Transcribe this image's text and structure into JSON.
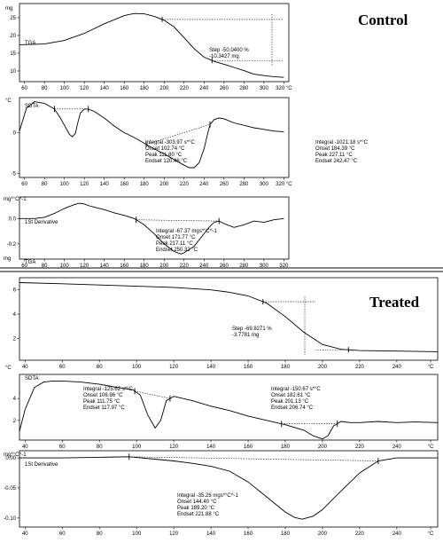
{
  "chart_data": [
    {
      "type": "line",
      "group": "Control",
      "title": "Control",
      "subtitle": "TGA",
      "unit": "mg",
      "xlim": [
        55,
        325
      ],
      "ylim": [
        7,
        29
      ],
      "x_ticks": [
        "60",
        "80",
        "100",
        "120",
        "140",
        "160",
        "180",
        "200",
        "220",
        "240",
        "260",
        "280",
        "300",
        "320 °C"
      ],
      "y_ticks": [
        [
          10,
          "10"
        ],
        [
          15,
          "15"
        ],
        [
          20,
          "20"
        ],
        [
          25,
          "25"
        ]
      ],
      "series": [
        {
          "x": [
            55,
            80,
            100,
            120,
            140,
            160,
            170,
            180,
            190,
            200,
            210,
            220,
            230,
            240,
            250,
            260,
            270,
            280,
            290,
            300,
            310,
            320
          ],
          "y": [
            17.4,
            17.6,
            18.6,
            20.6,
            23.3,
            25.6,
            26.2,
            26.1,
            25.4,
            24.3,
            22.4,
            19.4,
            16.3,
            13.9,
            12.7,
            11.9,
            11.0,
            10.1,
            9.1,
            8.7,
            8.4,
            8.2
          ]
        }
      ],
      "step_annotation": [
        "Step   -50.0400 %",
        "           -10.3427 mg"
      ],
      "step_range": [
        198,
        248
      ]
    },
    {
      "type": "line",
      "group": "Control",
      "subtitle": "SDTA",
      "unit": "°C",
      "xlim": [
        55,
        325
      ],
      "ylim": [
        -5.5,
        4.3
      ],
      "x_ticks": [
        "60",
        "80",
        "100",
        "120",
        "140",
        "160",
        "180",
        "200",
        "220",
        "240",
        "260",
        "280",
        "300",
        "320 °C"
      ],
      "y_ticks": [
        [
          -5,
          "-5"
        ],
        [
          0,
          "0"
        ]
      ],
      "series": [
        {
          "x": [
            55,
            62,
            70,
            80,
            90,
            95,
            100,
            105,
            108,
            111,
            113,
            116,
            120,
            124,
            130,
            140,
            150,
            160,
            170,
            180,
            190,
            200,
            210,
            220,
            225,
            230,
            235,
            240,
            243,
            246,
            250,
            255,
            260,
            270,
            280,
            290,
            300,
            310,
            320
          ],
          "y": [
            0.2,
            3.0,
            3.8,
            3.6,
            2.9,
            2.0,
            0.9,
            -0.2,
            -0.5,
            -0.1,
            1.0,
            2.4,
            2.9,
            2.9,
            2.6,
            1.8,
            0.8,
            0.0,
            -0.6,
            -1.3,
            -2.0,
            -2.6,
            -3.3,
            -4.0,
            -4.3,
            -4.3,
            -3.7,
            -2.0,
            -0.4,
            1.0,
            1.6,
            1.8,
            1.7,
            1.2,
            0.9,
            0.6,
            0.4,
            0.2,
            0.1
          ]
        }
      ],
      "baselines": [
        [
          90,
          124
        ],
        [
          182,
          246
        ]
      ],
      "annotations": [
        [
          "Integral   -303.97 s*°C",
          "Onset     102.74 °C",
          "Peak      111.80 °C",
          "Endset   120.46 °C"
        ],
        [
          "Integral   -1021.18 s*°C",
          "Onset      184.39 °C",
          "Peak       227.11 °C",
          "Endset    242.47 °C"
        ]
      ]
    },
    {
      "type": "line",
      "group": "Control",
      "subtitle": "1St Derivative",
      "unit": "mg*°C^-1",
      "xlim": [
        55,
        325
      ],
      "ylim": [
        -0.32,
        0.17
      ],
      "x_ticks": [
        "60",
        "80",
        "100",
        "120",
        "140",
        "160",
        "180",
        "200",
        "220",
        "240",
        "260",
        "280",
        "300",
        "320"
      ],
      "y_ticks": [
        [
          0.0,
          "0.0"
        ],
        [
          -0.2,
          "-0.2"
        ]
      ],
      "series": [
        {
          "x": [
            55,
            70,
            80,
            90,
            100,
            110,
            115,
            120,
            125,
            130,
            140,
            150,
            160,
            170,
            180,
            190,
            200,
            210,
            215,
            217,
            220,
            230,
            240,
            245,
            250,
            255,
            260,
            270,
            280,
            290,
            300,
            310,
            320
          ],
          "y": [
            0.0,
            0.0,
            0.01,
            0.04,
            0.08,
            0.11,
            0.12,
            0.115,
            0.1,
            0.09,
            0.07,
            0.045,
            0.025,
            0.0,
            -0.05,
            -0.12,
            -0.2,
            -0.26,
            -0.275,
            -0.28,
            -0.27,
            -0.22,
            -0.12,
            -0.07,
            -0.03,
            -0.02,
            -0.04,
            -0.07,
            -0.05,
            -0.02,
            -0.03,
            -0.01,
            0.0
          ]
        }
      ],
      "baselines": [
        [
          172,
          255
        ]
      ],
      "annotations": [
        [
          "Integral   -67.37 mgs*°C^-1",
          "Onset      171.77 °C",
          "Peak       217.11 °C",
          "Endset    250.32 °C"
        ]
      ]
    },
    {
      "type": "line",
      "group": "Treated",
      "title": "Treated",
      "subtitle": "TGA",
      "unit": "mg",
      "xlim": [
        37,
        262
      ],
      "ylim": [
        0.2,
        7.0
      ],
      "x_ticks": [
        "40",
        "60",
        "80",
        "100",
        "120",
        "140",
        "160",
        "180",
        "200",
        "220",
        "240",
        "°C"
      ],
      "y_ticks": [
        [
          2,
          "2"
        ],
        [
          4,
          "4"
        ],
        [
          6,
          "6"
        ]
      ],
      "series": [
        {
          "x": [
            37,
            60,
            80,
            100,
            120,
            140,
            150,
            160,
            170,
            180,
            190,
            200,
            210,
            220,
            240,
            262
          ],
          "y": [
            6.6,
            6.5,
            6.4,
            6.3,
            6.2,
            6.0,
            5.8,
            5.5,
            4.9,
            3.8,
            2.5,
            1.5,
            1.1,
            1.0,
            0.95,
            0.9
          ]
        }
      ],
      "step_annotation": [
        "Step   -69.8271 %",
        "          -3.7781 mg"
      ],
      "step_range": [
        168,
        214
      ]
    },
    {
      "type": "line",
      "group": "Treated",
      "subtitle": "SDTA",
      "unit": "°C",
      "xlim": [
        37,
        262
      ],
      "ylim": [
        0.2,
        6.2
      ],
      "x_ticks": [
        "40",
        "60",
        "80",
        "100",
        "120",
        "140",
        "160",
        "180",
        "200",
        "220",
        "240",
        "°C"
      ],
      "y_ticks": [
        [
          2,
          "2"
        ],
        [
          4,
          "4"
        ]
      ],
      "series": [
        {
          "x": [
            37,
            40,
            45,
            50,
            55,
            60,
            70,
            80,
            90,
            98,
            102,
            106,
            110,
            113,
            116,
            120,
            130,
            140,
            150,
            160,
            170,
            180,
            190,
            195,
            200,
            203,
            206,
            210,
            215,
            220,
            230,
            240,
            250,
            262
          ],
          "y": [
            1.0,
            3.0,
            5.0,
            5.5,
            5.6,
            5.6,
            5.5,
            5.3,
            5.0,
            4.8,
            4.3,
            2.5,
            1.3,
            2.0,
            3.8,
            4.2,
            3.8,
            3.3,
            2.9,
            2.4,
            2.0,
            1.6,
            1.1,
            0.6,
            0.3,
            0.6,
            1.5,
            1.9,
            1.8,
            1.8,
            1.9,
            1.8,
            1.85,
            1.8
          ]
        }
      ],
      "baselines": [
        [
          99,
          118
        ],
        [
          178,
          208
        ]
      ],
      "annotations": [
        [
          "Integral   -125.62 s*°C",
          "Onset      106.96 °C",
          "Peak       111.75 °C",
          "Endset    117.97 °C"
        ],
        [
          "Integral   -150.67 s*°C",
          "Onset      182.61 °C",
          "Peak       201.13 °C",
          "Endset    206.74 °C"
        ]
      ]
    },
    {
      "type": "line",
      "group": "Treated",
      "subtitle": "1St Derivative",
      "unit": "mg*°C^-1",
      "xlim": [
        37,
        262
      ],
      "ylim": [
        -0.115,
        0.012
      ],
      "x_ticks": [
        "40",
        "60",
        "80",
        "100",
        "120",
        "140",
        "160",
        "180",
        "200",
        "220",
        "240",
        "°C"
      ],
      "y_ticks": [
        [
          0.0,
          "0.00"
        ],
        [
          -0.05,
          "-0.05"
        ],
        [
          -0.1,
          "-0.10"
        ]
      ],
      "series": [
        {
          "x": [
            37,
            60,
            80,
            96,
            110,
            120,
            130,
            140,
            150,
            160,
            170,
            180,
            185,
            189,
            195,
            200,
            210,
            220,
            230,
            240,
            250,
            262
          ],
          "y": [
            0.0,
            0.0,
            0.001,
            0.002,
            -0.002,
            -0.005,
            -0.009,
            -0.014,
            -0.022,
            -0.04,
            -0.065,
            -0.09,
            -0.099,
            -0.102,
            -0.097,
            -0.086,
            -0.055,
            -0.025,
            -0.005,
            0.0,
            0.0,
            0.0
          ]
        }
      ],
      "baselines": [
        [
          96,
          230
        ]
      ],
      "annotations": [
        [
          "Integral   -35.26 mgs*°C^-1",
          "Onset      144.40 °C",
          "Peak       189.20 °C",
          "Endset    221.88 °C"
        ]
      ]
    }
  ]
}
